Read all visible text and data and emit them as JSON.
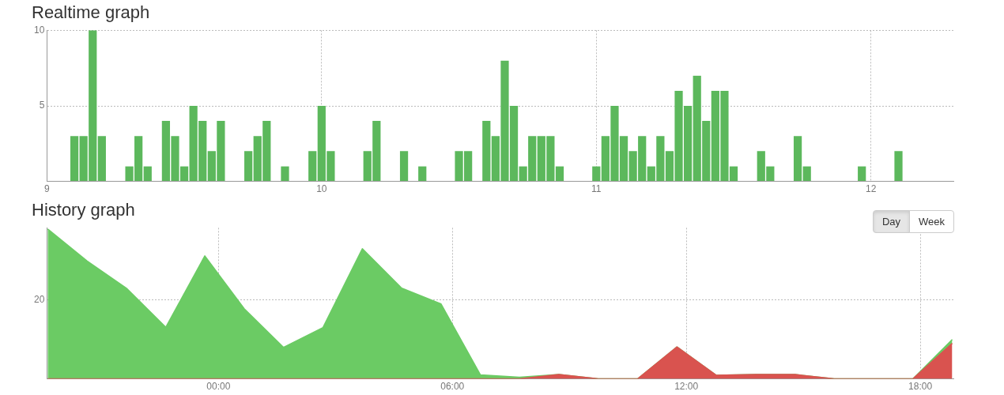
{
  "chart_data": [
    {
      "type": "bar",
      "title": "Realtime graph",
      "x": [
        9.1,
        9.1333,
        9.1667,
        9.2,
        9.3,
        9.3333,
        9.3667,
        9.4333,
        9.4667,
        9.5,
        9.5333,
        9.5667,
        9.6,
        9.6333,
        9.7333,
        9.7667,
        9.8,
        9.8667,
        9.9667,
        10,
        10.0333,
        10.1667,
        10.2,
        10.3,
        10.3667,
        10.5,
        10.5333,
        10.6,
        10.6333,
        10.6667,
        10.7,
        10.7333,
        10.7667,
        10.8,
        10.8333,
        10.8667,
        11,
        11.0333,
        11.0667,
        11.1,
        11.1333,
        11.1667,
        11.2,
        11.2333,
        11.2667,
        11.3,
        11.3333,
        11.3667,
        11.4,
        11.4333,
        11.4667,
        11.5,
        11.6,
        11.6333,
        11.7333,
        11.7667,
        11.9667,
        12.1
      ],
      "values": [
        3,
        3,
        10,
        3,
        1,
        3,
        1,
        4,
        3,
        1,
        5,
        4,
        2,
        4,
        2,
        3,
        4,
        1,
        2,
        5,
        2,
        2,
        4,
        2,
        1,
        2,
        2,
        4,
        3,
        8,
        5,
        1,
        3,
        3,
        3,
        1,
        1,
        3,
        5,
        3,
        2,
        3,
        1,
        3,
        2,
        6,
        5,
        7,
        4,
        6,
        6,
        1,
        2,
        1,
        3,
        1,
        1,
        2
      ],
      "color": "#5cb85c",
      "xlim": [
        9,
        12.3
      ],
      "xticks": [
        9,
        10,
        11,
        12
      ],
      "ylim": [
        0,
        10
      ],
      "yticks": [
        {
          "value": 0,
          "label": null
        },
        5,
        10
      ],
      "grid": true
    },
    {
      "type": "area",
      "title": "History graph",
      "stacked": true,
      "x": [
        -4.38,
        -3.37,
        -2.36,
        -1.35,
        -0.35,
        0.66,
        1.67,
        2.68,
        3.69,
        4.7,
        5.71,
        6.72,
        7.72,
        8.73,
        9.74,
        10.75,
        11.76,
        12.77,
        13.78,
        14.79,
        15.79,
        16.8,
        17.81,
        18.82
      ],
      "series": [
        {
          "color": "#d9534f",
          "values": [
            0,
            0,
            0,
            0,
            0,
            0,
            0,
            0,
            0,
            0,
            0,
            0,
            0,
            1.1,
            0,
            0,
            8.1,
            0.9,
            1.1,
            1.1,
            0,
            0,
            0,
            9
          ]
        },
        {
          "color": "#6bcb64",
          "values": [
            38,
            29.9,
            23,
            13.1,
            31.2,
            17.8,
            8,
            13,
            33,
            23,
            19,
            1,
            0.4,
            0,
            0,
            0,
            0,
            0,
            0,
            0,
            0,
            0,
            0,
            1
          ]
        }
      ],
      "xlim": [
        -4.4,
        18.85
      ],
      "xticks": [
        {
          "value": 0,
          "label": "00:00"
        },
        {
          "value": 6,
          "label": "06:00"
        },
        {
          "value": 12,
          "label": "12:00"
        },
        {
          "value": 18,
          "label": "18:00"
        }
      ],
      "ylim": [
        0,
        38.3
      ],
      "yticks": [
        {
          "value": 0,
          "label": null
        },
        20
      ],
      "grid": true,
      "annotations": [
        "Day",
        "Week"
      ]
    }
  ]
}
